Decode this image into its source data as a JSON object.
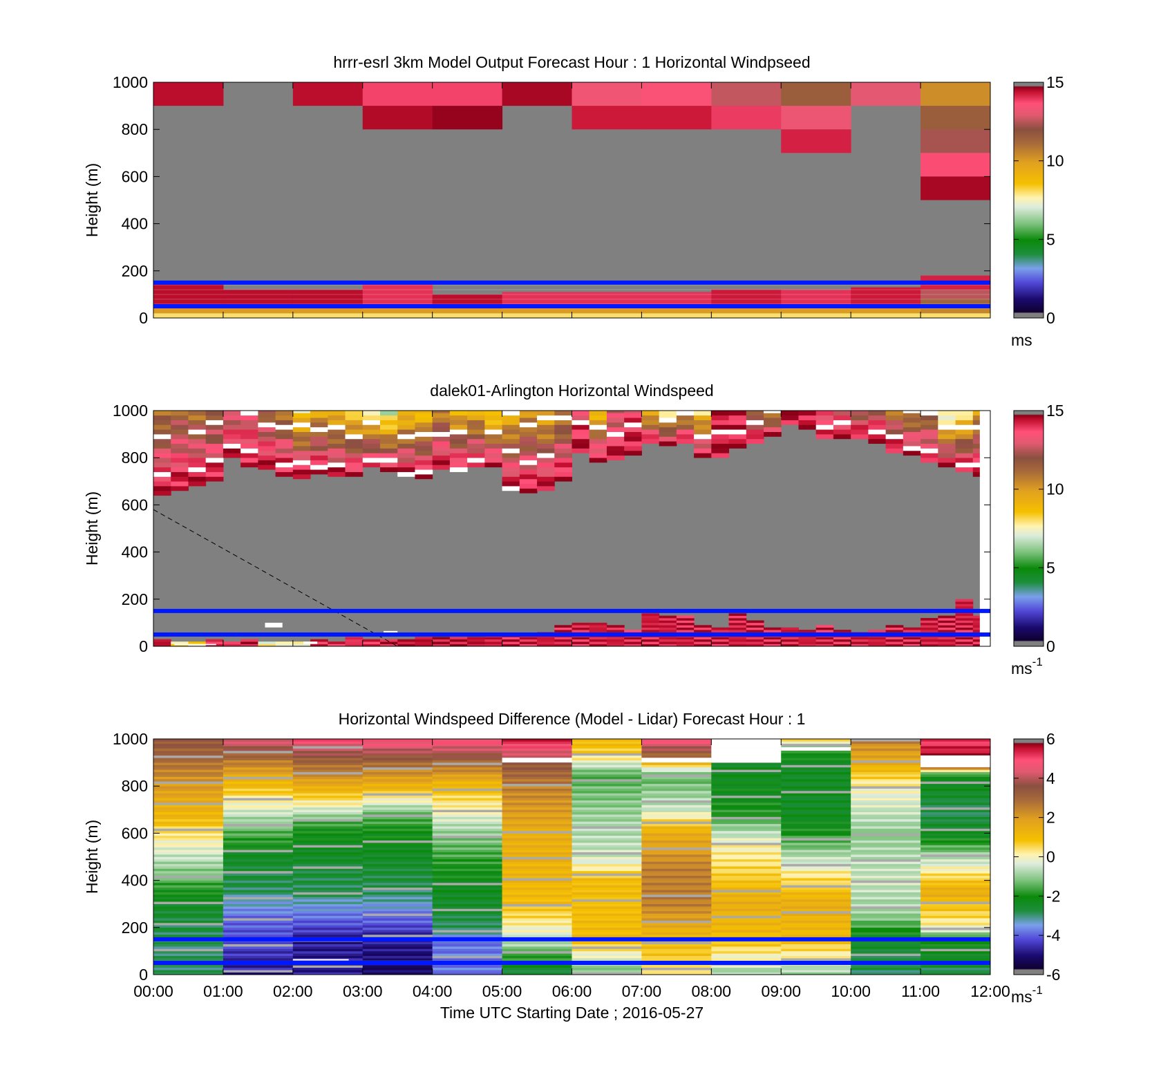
{
  "chart_data": [
    {
      "type": "heatmap",
      "title": "hrrr-esrl 3km Model Output   Forecast Hour : 1 Horizontal Windpseed",
      "ylabel": "Height (m)",
      "ylim": [
        0,
        1000
      ],
      "yticks": [
        "0",
        "200",
        "400",
        "600",
        "800",
        "1000"
      ],
      "xlim": [
        "00:00",
        "12:00"
      ],
      "colorbar": {
        "min": 0,
        "max": 15,
        "ticks": [
          "0",
          "5",
          "10",
          "15"
        ],
        "unit": "ms",
        "unit_sup": ""
      },
      "reference_lines_m": [
        150,
        50
      ],
      "columns": [
        {
          "time": "00:00",
          "bands": [
            [
              0,
              20,
              8
            ],
            [
              20,
              40,
              10
            ],
            [
              40,
              150,
              14.5
            ],
            [
              900,
              1000,
              14.5
            ]
          ]
        },
        {
          "time": "01:00",
          "bands": [
            [
              0,
              20,
              8
            ],
            [
              20,
              40,
              10
            ],
            [
              40,
              120,
              14.5
            ]
          ]
        },
        {
          "time": "02:00",
          "bands": [
            [
              0,
              20,
              8
            ],
            [
              20,
              40,
              10
            ],
            [
              40,
              120,
              14.5
            ],
            [
              900,
              1000,
              14.5
            ]
          ]
        },
        {
          "time": "03:00",
          "bands": [
            [
              0,
              20,
              8
            ],
            [
              20,
              40,
              10
            ],
            [
              40,
              150,
              14
            ],
            [
              900,
              1000,
              13.8
            ],
            [
              800,
              900,
              14.6
            ]
          ]
        },
        {
          "time": "04:00",
          "bands": [
            [
              0,
              20,
              8
            ],
            [
              20,
              40,
              10
            ],
            [
              40,
              100,
              14.5
            ],
            [
              900,
              1000,
              13.8
            ],
            [
              800,
              900,
              14.9
            ]
          ]
        },
        {
          "time": "05:00",
          "bands": [
            [
              0,
              20,
              8
            ],
            [
              20,
              40,
              10
            ],
            [
              40,
              110,
              14
            ],
            [
              900,
              1000,
              14.7
            ]
          ]
        },
        {
          "time": "06:00",
          "bands": [
            [
              0,
              20,
              8
            ],
            [
              20,
              40,
              10
            ],
            [
              40,
              110,
              14
            ],
            [
              900,
              1000,
              13.3
            ],
            [
              800,
              900,
              14.3
            ]
          ]
        },
        {
          "time": "07:00",
          "bands": [
            [
              0,
              20,
              8
            ],
            [
              20,
              40,
              10
            ],
            [
              40,
              110,
              14
            ],
            [
              900,
              1000,
              13.5
            ],
            [
              800,
              900,
              14.3
            ]
          ]
        },
        {
          "time": "08:00",
          "bands": [
            [
              0,
              20,
              8
            ],
            [
              20,
              40,
              10
            ],
            [
              40,
              120,
              14.3
            ],
            [
              900,
              1000,
              12.6
            ],
            [
              800,
              900,
              13.9
            ]
          ]
        },
        {
          "time": "09:00",
          "bands": [
            [
              0,
              20,
              8
            ],
            [
              20,
              40,
              10
            ],
            [
              40,
              120,
              14
            ],
            [
              900,
              1000,
              11.5
            ],
            [
              800,
              900,
              13.2
            ],
            [
              700,
              800,
              14.2
            ]
          ]
        },
        {
          "time": "10:00",
          "bands": [
            [
              0,
              20,
              8
            ],
            [
              20,
              40,
              10
            ],
            [
              40,
              130,
              14.3
            ],
            [
              900,
              1000,
              13
            ]
          ]
        },
        {
          "time": "11:00",
          "bands": [
            [
              0,
              20,
              8
            ],
            [
              20,
              40,
              10.5
            ],
            [
              40,
              80,
              11.3
            ],
            [
              80,
              120,
              12.5
            ],
            [
              120,
              180,
              14.2
            ],
            [
              900,
              1000,
              10.3
            ],
            [
              800,
              900,
              11.5
            ],
            [
              700,
              800,
              12.3
            ],
            [
              600,
              700,
              13.7
            ],
            [
              500,
              600,
              14.7
            ]
          ]
        }
      ]
    },
    {
      "type": "heatmap",
      "title": "dalek01-Arlington  Horizontal Windspeed",
      "ylabel": "Height (m)",
      "ylim": [
        0,
        1000
      ],
      "yticks": [
        "0",
        "200",
        "400",
        "600",
        "800",
        "1000"
      ],
      "xlim": [
        "00:00",
        "12:00"
      ],
      "colorbar": {
        "min": 0,
        "max": 15,
        "ticks": [
          "0",
          "5",
          "10",
          "15"
        ],
        "unit": "ms",
        "unit_sup": "-1"
      },
      "reference_lines_m": [
        150,
        50
      ],
      "dashed_line": [
        [
          0,
          580
        ],
        [
          3.5,
          0
        ]
      ],
      "profile_interval_hours": 0.25,
      "upper_edge_m": [
        640,
        660,
        680,
        700,
        800,
        760,
        750,
        720,
        710,
        730,
        720,
        720,
        760,
        740,
        720,
        710,
        750,
        740,
        760,
        760,
        660,
        650,
        660,
        700,
        820,
        780,
        790,
        810,
        860,
        850,
        860,
        800,
        800,
        840,
        860,
        890,
        940,
        920,
        880,
        880,
        880,
        860,
        820,
        810,
        780,
        760,
        740,
        720
      ],
      "upper_start_speed": [
        11,
        11.5,
        11,
        11.2,
        12.4,
        12.8,
        11.5,
        11,
        8,
        9.5,
        9,
        8.5,
        8,
        7,
        8.8,
        8.5,
        10.5,
        9.2,
        9.5,
        8,
        9.2,
        10.2,
        9.3,
        10.5,
        13.5,
        9,
        12.5,
        13.5,
        9,
        7,
        9.5,
        8.5,
        14.5,
        14.2,
        11,
        9,
        14.8,
        14.5,
        13.5,
        13,
        12,
        12.7,
        11,
        10,
        11,
        7,
        8,
        10
      ],
      "near_surface_speed": [
        14.5,
        8,
        8,
        14,
        14,
        14.5,
        7.5,
        7.5,
        7.5,
        14,
        14,
        14,
        14,
        14.5,
        14.5,
        14.5,
        14.5,
        14.5,
        14.5,
        14.3,
        14.3,
        14.3,
        14.3,
        14.3,
        14.3,
        14.3,
        14.3,
        14.3,
        14.3,
        14.3,
        14.3,
        14.3,
        14.3,
        14.3,
        14.3,
        14.3,
        14.3,
        14.3,
        14.3,
        14.3,
        14.3,
        14.3,
        14.3,
        14.3,
        14.3,
        14.3,
        14.3,
        14.3
      ],
      "near_surface_top_m": [
        30,
        20,
        15,
        25,
        20,
        30,
        15,
        20,
        20,
        25,
        20,
        40,
        30,
        30,
        30,
        35,
        40,
        40,
        40,
        50,
        50,
        50,
        60,
        90,
        100,
        100,
        90,
        70,
        140,
        130,
        130,
        90,
        80,
        140,
        110,
        80,
        80,
        70,
        90,
        70,
        60,
        70,
        90,
        80,
        120,
        130,
        200,
        130
      ]
    },
    {
      "type": "heatmap",
      "title": "Horizontal Windspeed Difference (Model - Lidar) Forecast Hour : 1",
      "xlabel": "Time UTC  Starting Date ; 2016-05-27",
      "ylabel": "Height (m)",
      "ylim": [
        0,
        1000
      ],
      "yticks": [
        "0",
        "200",
        "400",
        "600",
        "800",
        "1000"
      ],
      "xticks": [
        "00:00",
        "01:00",
        "02:00",
        "03:00",
        "04:00",
        "05:00",
        "06:00",
        "07:00",
        "08:00",
        "09:00",
        "10:00",
        "11:00",
        "12:00"
      ],
      "colorbar": {
        "min": -6,
        "max": 6,
        "ticks": [
          "-6",
          "-4",
          "-2",
          "0",
          "2",
          "4",
          "6"
        ],
        "unit": "ms",
        "unit_sup": "-1"
      },
      "reference_lines_m": [
        150,
        50
      ],
      "columns": [
        {
          "time": "00:00",
          "stops": [
            [
              0,
              -3
            ],
            [
              150,
              -3
            ],
            [
              300,
              -2.5
            ],
            [
              450,
              -1
            ],
            [
              560,
              0
            ],
            [
              650,
              1
            ],
            [
              800,
              2
            ],
            [
              1000,
              3.5
            ]
          ]
        },
        {
          "time": "01:00",
          "stops": [
            [
              0,
              -5
            ],
            [
              150,
              -4.5
            ],
            [
              250,
              -4
            ],
            [
              350,
              -3
            ],
            [
              500,
              -2.5
            ],
            [
              650,
              -1
            ],
            [
              720,
              0
            ],
            [
              800,
              1
            ],
            [
              900,
              2.5
            ],
            [
              1000,
              4.5
            ]
          ]
        },
        {
          "time": "02:00",
          "stops": [
            [
              0,
              -5
            ],
            [
              150,
              -5
            ],
            [
              250,
              -4
            ],
            [
              350,
              -3
            ],
            [
              500,
              -2.5
            ],
            [
              620,
              -2
            ],
            [
              720,
              0
            ],
            [
              800,
              1.5
            ],
            [
              900,
              3
            ],
            [
              1000,
              5
            ]
          ]
        },
        {
          "time": "03:00",
          "stops": [
            [
              0,
              -5.5
            ],
            [
              150,
              -5
            ],
            [
              250,
              -4
            ],
            [
              350,
              -3
            ],
            [
              500,
              -2.5
            ],
            [
              620,
              -2
            ],
            [
              700,
              -1
            ],
            [
              780,
              1
            ],
            [
              900,
              3
            ],
            [
              1000,
              5
            ]
          ]
        },
        {
          "time": "04:00",
          "stops": [
            [
              0,
              -4
            ],
            [
              150,
              -4
            ],
            [
              200,
              -3
            ],
            [
              450,
              -2
            ],
            [
              600,
              -1
            ],
            [
              700,
              0
            ],
            [
              800,
              1
            ],
            [
              900,
              3
            ],
            [
              1000,
              5
            ]
          ]
        },
        {
          "time": "05:00",
          "stops": [
            [
              0,
              -3
            ],
            [
              150,
              -0.5
            ],
            [
              300,
              1
            ],
            [
              600,
              1.5
            ],
            [
              800,
              2.5
            ],
            [
              900,
              3.5
            ],
            [
              1000,
              5.5
            ]
          ]
        },
        {
          "time": "06:00",
          "stops": [
            [
              0,
              -1.5
            ],
            [
              150,
              1
            ],
            [
              400,
              1
            ],
            [
              500,
              -0.5
            ],
            [
              700,
              -1
            ],
            [
              850,
              -1.5
            ],
            [
              930,
              0.5
            ],
            [
              1000,
              1.2
            ]
          ]
        },
        {
          "time": "07:00",
          "stops": [
            [
              0,
              0.5
            ],
            [
              150,
              1
            ],
            [
              300,
              2.5
            ],
            [
              450,
              2.5
            ],
            [
              600,
              1.5
            ],
            [
              700,
              -0.5
            ],
            [
              850,
              -1.5
            ],
            [
              930,
              3
            ],
            [
              1000,
              5
            ]
          ]
        },
        {
          "time": "08:00",
          "stops": [
            [
              0,
              -1
            ],
            [
              150,
              1
            ],
            [
              300,
              1.5
            ],
            [
              450,
              0.5
            ],
            [
              550,
              0
            ],
            [
              700,
              -2
            ],
            [
              900,
              -2.5
            ]
          ]
        },
        {
          "time": "09:00",
          "stops": [
            [
              0,
              -1
            ],
            [
              150,
              1
            ],
            [
              300,
              1.5
            ],
            [
              450,
              0
            ],
            [
              600,
              -2
            ],
            [
              700,
              -2.5
            ],
            [
              850,
              -2.5
            ],
            [
              950,
              -2
            ],
            [
              1000,
              1
            ]
          ]
        },
        {
          "time": "10:00",
          "stops": [
            [
              0,
              -3
            ],
            [
              150,
              -2.5
            ],
            [
              250,
              -1
            ],
            [
              400,
              -0.5
            ],
            [
              600,
              -1
            ],
            [
              800,
              0
            ],
            [
              900,
              1.5
            ],
            [
              1000,
              2.5
            ]
          ]
        },
        {
          "time": "11:00",
          "stops": [
            [
              0,
              -3
            ],
            [
              150,
              -2
            ],
            [
              200,
              0
            ],
            [
              350,
              1.5
            ],
            [
              450,
              0
            ],
            [
              600,
              -2.5
            ],
            [
              700,
              -3
            ],
            [
              850,
              -2
            ],
            [
              900,
              6
            ],
            [
              1000,
              5
            ]
          ]
        }
      ]
    }
  ]
}
